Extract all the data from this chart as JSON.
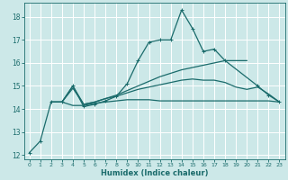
{
  "xlabel": "Humidex (Indice chaleur)",
  "bg_color": "#cce8e8",
  "grid_color": "#ffffff",
  "line_color": "#1a6b6b",
  "xlim": [
    -0.5,
    23.5
  ],
  "ylim": [
    11.8,
    18.6
  ],
  "yticks": [
    12,
    13,
    14,
    15,
    16,
    17,
    18
  ],
  "xticks": [
    0,
    1,
    2,
    3,
    4,
    5,
    6,
    7,
    8,
    9,
    10,
    11,
    12,
    13,
    14,
    15,
    16,
    17,
    18,
    19,
    20,
    21,
    22,
    23
  ],
  "series": [
    {
      "x": [
        0,
        1,
        2,
        3,
        4,
        5,
        6,
        7,
        8,
        9,
        10,
        11,
        12,
        13,
        14,
        15,
        16,
        17,
        18,
        21,
        22,
        23
      ],
      "y": [
        12.1,
        12.6,
        14.3,
        14.3,
        15.0,
        14.1,
        14.2,
        14.35,
        14.55,
        15.1,
        16.1,
        16.9,
        17.0,
        17.0,
        18.3,
        17.5,
        16.5,
        16.6,
        16.1,
        15.0,
        14.6,
        14.3
      ],
      "marker": true,
      "lw": 0.9
    },
    {
      "x": [
        2,
        3,
        4,
        5,
        6,
        7,
        8,
        9,
        10,
        11,
        12,
        13,
        14,
        15,
        16,
        17,
        18,
        19,
        20,
        21,
        22,
        23
      ],
      "y": [
        14.3,
        14.3,
        14.15,
        14.15,
        14.25,
        14.3,
        14.35,
        14.4,
        14.4,
        14.4,
        14.35,
        14.35,
        14.35,
        14.35,
        14.35,
        14.35,
        14.35,
        14.35,
        14.35,
        14.35,
        14.35,
        14.3
      ],
      "marker": false,
      "lw": 0.9
    },
    {
      "x": [
        2,
        3,
        4,
        5,
        6,
        7,
        8,
        9,
        10,
        11,
        12,
        13,
        14,
        15,
        16,
        17,
        18,
        19,
        20
      ],
      "y": [
        14.3,
        14.3,
        15.0,
        14.2,
        14.3,
        14.45,
        14.6,
        14.8,
        15.0,
        15.2,
        15.4,
        15.55,
        15.7,
        15.8,
        15.9,
        16.0,
        16.1,
        16.1,
        16.1
      ],
      "marker": false,
      "lw": 0.9
    },
    {
      "x": [
        2,
        3,
        4,
        5,
        6,
        7,
        8,
        9,
        10,
        11,
        12,
        13,
        14,
        15,
        16,
        17,
        18,
        19,
        20,
        21,
        22,
        23
      ],
      "y": [
        14.3,
        14.3,
        14.9,
        14.2,
        14.3,
        14.45,
        14.55,
        14.7,
        14.85,
        14.95,
        15.05,
        15.15,
        15.25,
        15.3,
        15.25,
        15.25,
        15.15,
        14.95,
        14.85,
        14.95,
        14.65,
        14.3
      ],
      "marker": false,
      "lw": 0.9
    }
  ]
}
